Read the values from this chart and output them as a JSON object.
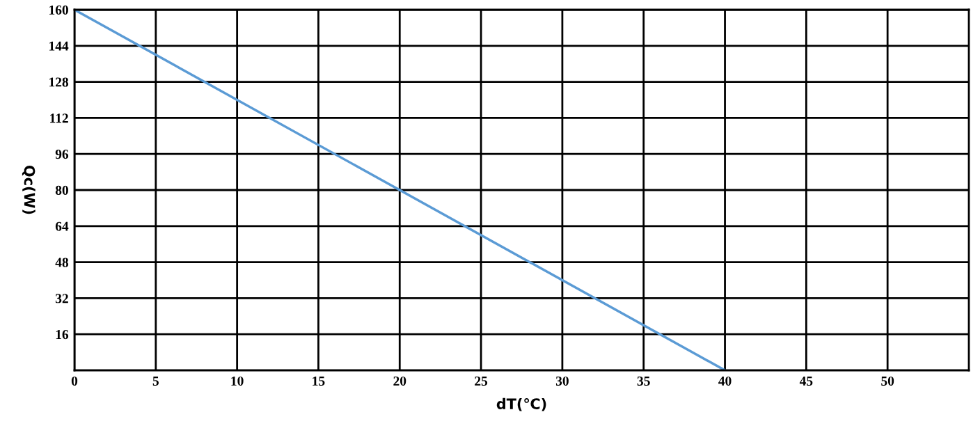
{
  "chart_data": {
    "type": "line",
    "xlabel": "dT(℃)",
    "ylabel": "Qc(W)",
    "series": [
      {
        "x": [
          0,
          40
        ],
        "values": [
          160,
          0
        ],
        "color": "#5b9bd5"
      }
    ],
    "xlim": [
      0,
      55
    ],
    "ylim": [
      0,
      160
    ],
    "xticks": [
      0,
      5,
      10,
      15,
      20,
      25,
      30,
      35,
      40,
      45,
      50
    ],
    "yticks": [
      16,
      32,
      48,
      64,
      80,
      96,
      112,
      128,
      144,
      160
    ],
    "grid": true,
    "marker": "none",
    "line_style": "solid"
  }
}
